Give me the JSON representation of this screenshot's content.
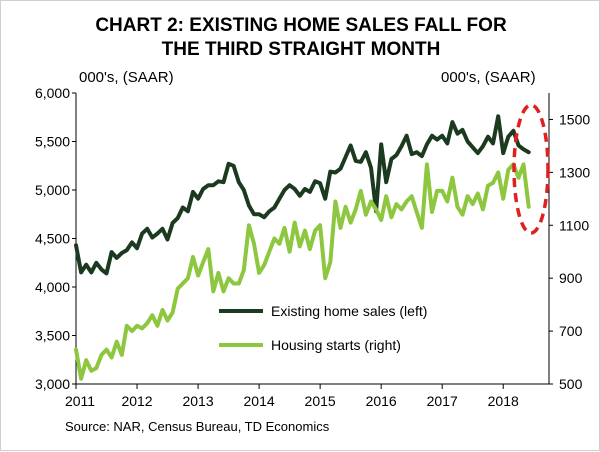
{
  "chart_data": {
    "type": "line",
    "title": "CHART 2: EXISTING HOME SALES FALL FOR THE THIRD STRAIGHT MONTH",
    "title_lines": [
      "CHART 2: EXISTING HOME SALES FALL FOR",
      "THE THIRD STRAIGHT MONTH"
    ],
    "left_axis_label": "000's, (SAAR)",
    "right_axis_label": "000's, (SAAR)",
    "source": "Source: NAR, Census Bureau, TD Economics",
    "x_ticks": [
      "2011",
      "2012",
      "2013",
      "2014",
      "2015",
      "2016",
      "2017",
      "2018"
    ],
    "y_left": {
      "ticks": [
        "3,000",
        "3,500",
        "4,000",
        "4,500",
        "5,000",
        "5,500",
        "6,000"
      ],
      "tick_values": [
        3000,
        3500,
        4000,
        4500,
        5000,
        5500,
        6000
      ],
      "range": [
        3000,
        6000
      ]
    },
    "y_right": {
      "ticks": [
        "500",
        "700",
        "900",
        "1100",
        "1300",
        "1500"
      ],
      "tick_values": [
        500,
        700,
        900,
        1100,
        1300,
        1500
      ],
      "range": [
        500,
        1600
      ]
    },
    "x_range": [
      2011,
      2018.75
    ],
    "series": [
      {
        "name": "Existing home sales (left)",
        "axis": "left",
        "color": "#1c3a20",
        "x": [
          2011.0,
          2011.083,
          2011.167,
          2011.25,
          2011.333,
          2011.417,
          2011.5,
          2011.583,
          2011.667,
          2011.75,
          2011.833,
          2011.917,
          2012.0,
          2012.083,
          2012.167,
          2012.25,
          2012.333,
          2012.417,
          2012.5,
          2012.583,
          2012.667,
          2012.75,
          2012.833,
          2012.917,
          2013.0,
          2013.083,
          2013.167,
          2013.25,
          2013.333,
          2013.417,
          2013.5,
          2013.583,
          2013.667,
          2013.75,
          2013.833,
          2013.917,
          2014.0,
          2014.083,
          2014.167,
          2014.25,
          2014.333,
          2014.417,
          2014.5,
          2014.583,
          2014.667,
          2014.75,
          2014.833,
          2014.917,
          2015.0,
          2015.083,
          2015.167,
          2015.25,
          2015.333,
          2015.417,
          2015.5,
          2015.583,
          2015.667,
          2015.75,
          2015.833,
          2015.917,
          2016.0,
          2016.083,
          2016.167,
          2016.25,
          2016.333,
          2016.417,
          2016.5,
          2016.583,
          2016.667,
          2016.75,
          2016.833,
          2016.917,
          2017.0,
          2017.083,
          2017.167,
          2017.25,
          2017.333,
          2017.417,
          2017.5,
          2017.583,
          2017.667,
          2017.75,
          2017.833,
          2017.917,
          2018.0,
          2018.083,
          2018.167,
          2018.25,
          2018.333,
          2018.417
        ],
        "values": [
          4430,
          4150,
          4230,
          4150,
          4250,
          4180,
          4140,
          4360,
          4300,
          4350,
          4380,
          4460,
          4400,
          4550,
          4600,
          4510,
          4550,
          4600,
          4490,
          4660,
          4710,
          4820,
          4780,
          4980,
          4910,
          5010,
          5050,
          5050,
          5090,
          5080,
          5270,
          5250,
          5080,
          5000,
          4840,
          4750,
          4750,
          4720,
          4780,
          4820,
          4910,
          5000,
          5050,
          5010,
          4940,
          5010,
          4980,
          5090,
          5070,
          4910,
          5190,
          5180,
          5220,
          5340,
          5460,
          5300,
          5290,
          5390,
          5230,
          4780,
          5470,
          5080,
          5320,
          5360,
          5450,
          5560,
          5370,
          5390,
          5350,
          5470,
          5560,
          5520,
          5560,
          5480,
          5700,
          5580,
          5620,
          5500,
          5440,
          5380,
          5450,
          5550,
          5480,
          5760,
          5380,
          5550,
          5610,
          5460,
          5420,
          5390
        ]
      },
      {
        "name": "Housing starts (right)",
        "axis": "right",
        "color": "#8dc63f",
        "x": [
          2011.0,
          2011.083,
          2011.167,
          2011.25,
          2011.333,
          2011.417,
          2011.5,
          2011.583,
          2011.667,
          2011.75,
          2011.833,
          2011.917,
          2012.0,
          2012.083,
          2012.167,
          2012.25,
          2012.333,
          2012.417,
          2012.5,
          2012.583,
          2012.667,
          2012.75,
          2012.833,
          2012.917,
          2013.0,
          2013.083,
          2013.167,
          2013.25,
          2013.333,
          2013.417,
          2013.5,
          2013.583,
          2013.667,
          2013.75,
          2013.833,
          2013.917,
          2014.0,
          2014.083,
          2014.167,
          2014.25,
          2014.333,
          2014.417,
          2014.5,
          2014.583,
          2014.667,
          2014.75,
          2014.833,
          2014.917,
          2015.0,
          2015.083,
          2015.167,
          2015.25,
          2015.333,
          2015.417,
          2015.5,
          2015.583,
          2015.667,
          2015.75,
          2015.833,
          2015.917,
          2016.0,
          2016.083,
          2016.167,
          2016.25,
          2016.333,
          2016.417,
          2016.5,
          2016.583,
          2016.667,
          2016.75,
          2016.833,
          2016.917,
          2017.0,
          2017.083,
          2017.167,
          2017.25,
          2017.333,
          2017.417,
          2017.5,
          2017.583,
          2017.667,
          2017.75,
          2017.833,
          2017.917,
          2018.0,
          2018.083,
          2018.167,
          2018.25,
          2018.333,
          2018.417
        ],
        "values": [
          630,
          520,
          590,
          550,
          560,
          610,
          630,
          600,
          660,
          610,
          720,
          700,
          720,
          710,
          730,
          760,
          720,
          780,
          740,
          770,
          860,
          880,
          900,
          980,
          910,
          960,
          1010,
          850,
          920,
          850,
          900,
          880,
          880,
          930,
          1100,
          1030,
          920,
          950,
          1000,
          1050,
          1030,
          1090,
          1000,
          1110,
          1020,
          1080,
          1010,
          1080,
          1100,
          900,
          960,
          1190,
          1090,
          1170,
          1110,
          1160,
          1230,
          1140,
          1190,
          1160,
          1120,
          1210,
          1130,
          1180,
          1160,
          1190,
          1210,
          1150,
          1090,
          1330,
          1150,
          1230,
          1230,
          1190,
          1280,
          1170,
          1140,
          1210,
          1180,
          1220,
          1160,
          1250,
          1260,
          1300,
          1200,
          1310,
          1330,
          1280,
          1330,
          1170
        ]
      }
    ],
    "annotation": "dashed red ellipse highlighting the most recent months"
  }
}
